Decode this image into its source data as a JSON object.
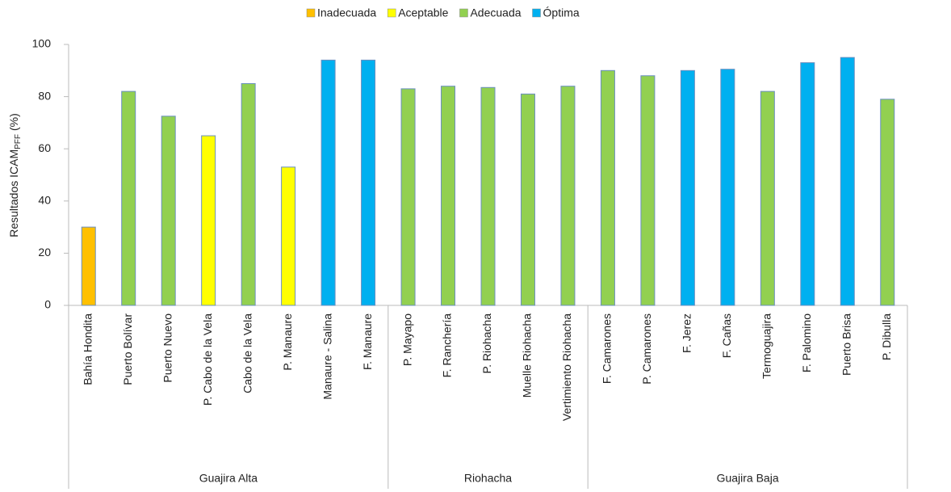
{
  "chart_data": {
    "type": "bar",
    "ylabel": {
      "main": "Resultados ICAM",
      "sub": "PFF",
      "unit": "(%)"
    },
    "legend": [
      {
        "name": "Inadecuada",
        "color": "#ffc000"
      },
      {
        "name": "Aceptable",
        "color": "#ffff00"
      },
      {
        "name": "Adecuada",
        "color": "#92d050"
      },
      {
        "name": "Óptima",
        "color": "#00b0f0"
      }
    ],
    "groups": [
      {
        "name": "Guajira Alta",
        "categories": [
          "Bahía Hondita",
          "Puerto Bolívar",
          "Puerto Nuevo",
          "P. Cabo de la Vela",
          "Cabo de la Vela",
          "P. Manaure",
          "Manaure - Salina",
          "F. Manaure"
        ],
        "values": [
          30,
          82,
          72.5,
          65,
          85,
          53,
          94,
          94
        ],
        "colors": [
          "#ffc000",
          "#92d050",
          "#92d050",
          "#ffff00",
          "#92d050",
          "#ffff00",
          "#00b0f0",
          "#00b0f0"
        ]
      },
      {
        "name": "Riohacha",
        "categories": [
          "P. Mayapo",
          "F. Ranchería",
          "P. Riohacha",
          "Muelle Riohacha",
          "Vertimiento Riohacha"
        ],
        "values": [
          83,
          84,
          83.5,
          81,
          84
        ],
        "colors": [
          "#92d050",
          "#92d050",
          "#92d050",
          "#92d050",
          "#92d050"
        ]
      },
      {
        "name": "Guajira Baja",
        "categories": [
          "F. Camarones",
          "P. Camarones",
          "F. Jerez",
          "F. Cañas",
          "Termoguajira",
          "F. Palomino",
          "Puerto Brisa",
          "P. Dibulla"
        ],
        "values": [
          90,
          88,
          90,
          90.5,
          82,
          93,
          95,
          79
        ],
        "colors": [
          "#92d050",
          "#92d050",
          "#00b0f0",
          "#00b0f0",
          "#92d050",
          "#00b0f0",
          "#00b0f0",
          "#92d050"
        ]
      }
    ],
    "ylim": [
      0,
      100
    ],
    "yticks": [
      0,
      20,
      40,
      60,
      80,
      100
    ]
  }
}
